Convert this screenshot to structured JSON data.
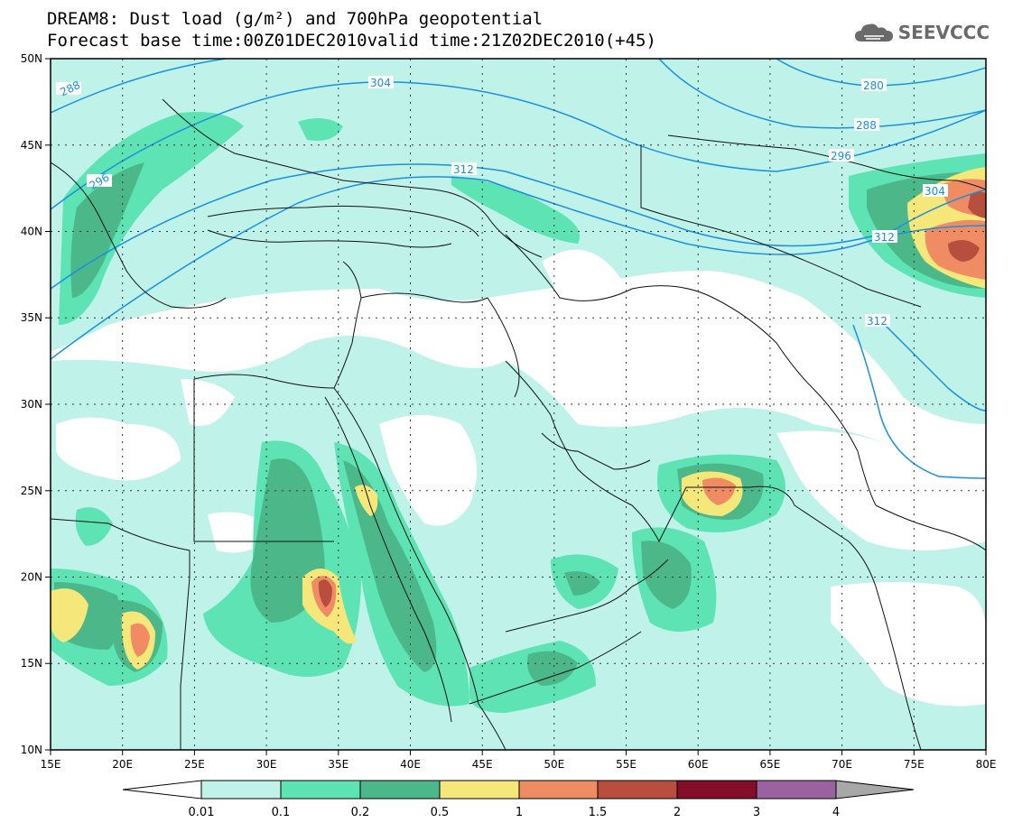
{
  "title": {
    "line1": "DREAM8: Dust load (g/m²) and 700hPa geopotential",
    "line2": "Forecast base time:00Z01DEC2010valid time:21Z02DEC2010(+45)"
  },
  "logo": {
    "text": "SEEVCCC"
  },
  "map": {
    "lon_range": [
      15,
      80
    ],
    "lat_range": [
      10,
      50
    ],
    "lon_ticks": [
      "15E",
      "20E",
      "25E",
      "30E",
      "35E",
      "40E",
      "45E",
      "50E",
      "55E",
      "60E",
      "65E",
      "70E",
      "75E",
      "80E"
    ],
    "lat_ticks": [
      "10N",
      "15N",
      "20N",
      "25N",
      "30N",
      "35N",
      "40N",
      "45N",
      "50N"
    ],
    "contour_labels": [
      "280",
      "288",
      "288",
      "296",
      "296",
      "304",
      "304",
      "312",
      "312",
      "312"
    ]
  },
  "colorbar": {
    "levels": [
      "0.01",
      "0.1",
      "0.2",
      "0.5",
      "1",
      "1.5",
      "2",
      "3",
      "4"
    ],
    "colors": [
      "#bff2e8",
      "#5ee3b4",
      "#4cb88a",
      "#f5e77a",
      "#ef8c63",
      "#b84e3e",
      "#820e2a",
      "#9a63a0",
      "#a8a8a8"
    ]
  },
  "colors": {
    "contour": "#1a90e0",
    "coast": "#111111",
    "grid": "#333333"
  }
}
